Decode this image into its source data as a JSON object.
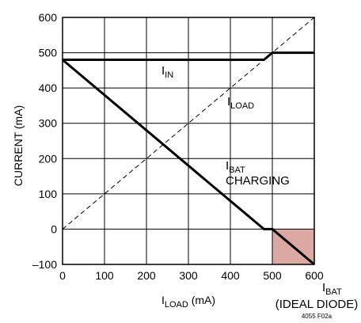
{
  "chart_data": {
    "type": "line",
    "xlabel": {
      "main": "I",
      "sub": "LOAD",
      "unit": " (mA)"
    },
    "ylabel": "CURRENT (mA)",
    "xlim": [
      0,
      600
    ],
    "ylim": [
      -100,
      600
    ],
    "xticks": [
      0,
      100,
      200,
      300,
      400,
      500,
      600
    ],
    "yticks": [
      -100,
      0,
      100,
      200,
      300,
      400,
      500,
      600
    ],
    "ytick_labels": [
      "–100",
      "0",
      "100",
      "200",
      "300",
      "400",
      "500",
      "600"
    ],
    "grid": true,
    "series": [
      {
        "name": "IN",
        "style": "solid-thick",
        "x": [
          0,
          480,
          500,
          600
        ],
        "y": [
          480,
          480,
          500,
          500
        ]
      },
      {
        "name": "LOAD",
        "style": "dashed",
        "x": [
          0,
          600
        ],
        "y": [
          0,
          600
        ]
      },
      {
        "name": "BAT",
        "style": "solid-thick",
        "x": [
          0,
          480,
          500,
          600
        ],
        "y": [
          480,
          0,
          0,
          -100
        ]
      }
    ],
    "shaded_region": {
      "x": [
        500,
        600
      ],
      "y": [
        -100,
        0
      ],
      "color": "#dba8a3"
    },
    "annotations": {
      "iin": {
        "main": "I",
        "sub": "IN"
      },
      "iload": {
        "main": "I",
        "sub": "LOAD"
      },
      "ibat": {
        "main": "I",
        "sub": "BAT",
        "line2": "CHARGING"
      },
      "ibat_ideal": {
        "main": "I",
        "sub": "BAT",
        "line2": "(IDEAL DIODE)"
      }
    },
    "figure_code": "4055 F02a"
  }
}
